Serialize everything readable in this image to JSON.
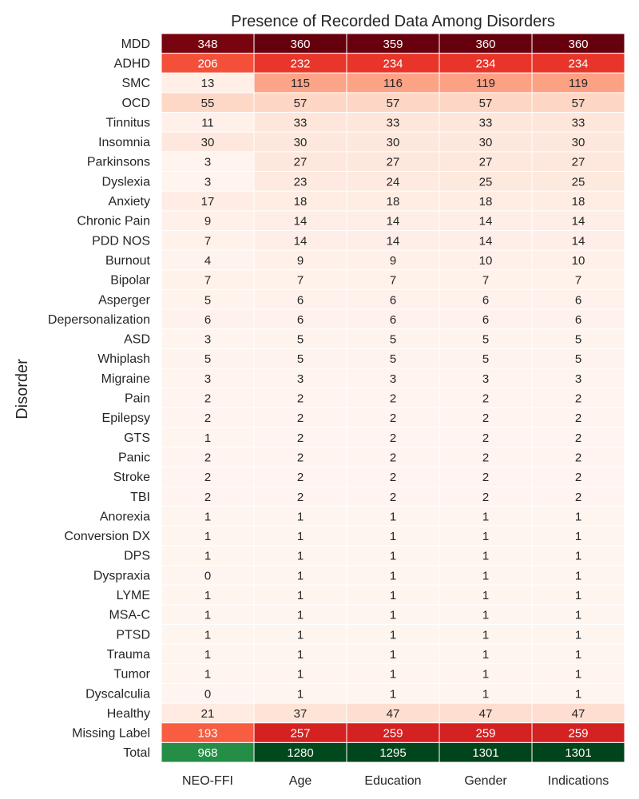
{
  "chart_data": {
    "type": "heatmap",
    "title": "Presence of Recorded Data Among Disorders",
    "xlabel": "",
    "ylabel": "Disorder",
    "columns": [
      "NEO-FFI",
      "Age",
      "Education",
      "Gender",
      "Indications"
    ],
    "rows": [
      {
        "label": "MDD",
        "values": [
          348,
          360,
          359,
          360,
          360
        ]
      },
      {
        "label": "ADHD",
        "values": [
          206,
          232,
          234,
          234,
          234
        ]
      },
      {
        "label": "SMC",
        "values": [
          13,
          115,
          116,
          119,
          119
        ]
      },
      {
        "label": "OCD",
        "values": [
          55,
          57,
          57,
          57,
          57
        ]
      },
      {
        "label": "Tinnitus",
        "values": [
          11,
          33,
          33,
          33,
          33
        ]
      },
      {
        "label": "Insomnia",
        "values": [
          30,
          30,
          30,
          30,
          30
        ]
      },
      {
        "label": "Parkinsons",
        "values": [
          3,
          27,
          27,
          27,
          27
        ]
      },
      {
        "label": "Dyslexia",
        "values": [
          3,
          23,
          24,
          25,
          25
        ]
      },
      {
        "label": "Anxiety",
        "values": [
          17,
          18,
          18,
          18,
          18
        ]
      },
      {
        "label": "Chronic Pain",
        "values": [
          9,
          14,
          14,
          14,
          14
        ]
      },
      {
        "label": "PDD NOS",
        "values": [
          7,
          14,
          14,
          14,
          14
        ]
      },
      {
        "label": "Burnout",
        "values": [
          4,
          9,
          9,
          10,
          10
        ]
      },
      {
        "label": "Bipolar",
        "values": [
          7,
          7,
          7,
          7,
          7
        ]
      },
      {
        "label": "Asperger",
        "values": [
          5,
          6,
          6,
          6,
          6
        ]
      },
      {
        "label": "Depersonalization",
        "values": [
          6,
          6,
          6,
          6,
          6
        ]
      },
      {
        "label": "ASD",
        "values": [
          3,
          5,
          5,
          5,
          5
        ]
      },
      {
        "label": "Whiplash",
        "values": [
          5,
          5,
          5,
          5,
          5
        ]
      },
      {
        "label": "Migraine",
        "values": [
          3,
          3,
          3,
          3,
          3
        ]
      },
      {
        "label": "Pain",
        "values": [
          2,
          2,
          2,
          2,
          2
        ]
      },
      {
        "label": "Epilepsy",
        "values": [
          2,
          2,
          2,
          2,
          2
        ]
      },
      {
        "label": "GTS",
        "values": [
          1,
          2,
          2,
          2,
          2
        ]
      },
      {
        "label": "Panic",
        "values": [
          2,
          2,
          2,
          2,
          2
        ]
      },
      {
        "label": "Stroke",
        "values": [
          2,
          2,
          2,
          2,
          2
        ]
      },
      {
        "label": "TBI",
        "values": [
          2,
          2,
          2,
          2,
          2
        ]
      },
      {
        "label": "Anorexia",
        "values": [
          1,
          1,
          1,
          1,
          1
        ]
      },
      {
        "label": "Conversion DX",
        "values": [
          1,
          1,
          1,
          1,
          1
        ]
      },
      {
        "label": "DPS",
        "values": [
          1,
          1,
          1,
          1,
          1
        ]
      },
      {
        "label": "Dyspraxia",
        "values": [
          0,
          1,
          1,
          1,
          1
        ]
      },
      {
        "label": "LYME",
        "values": [
          1,
          1,
          1,
          1,
          1
        ]
      },
      {
        "label": "MSA-C",
        "values": [
          1,
          1,
          1,
          1,
          1
        ]
      },
      {
        "label": "PTSD",
        "values": [
          1,
          1,
          1,
          1,
          1
        ]
      },
      {
        "label": "Trauma",
        "values": [
          1,
          1,
          1,
          1,
          1
        ]
      },
      {
        "label": "Tumor",
        "values": [
          1,
          1,
          1,
          1,
          1
        ]
      },
      {
        "label": "Dyscalculia",
        "values": [
          0,
          1,
          1,
          1,
          1
        ]
      },
      {
        "label": "Healthy",
        "values": [
          21,
          37,
          47,
          47,
          47
        ]
      },
      {
        "label": "Missing Label",
        "values": [
          193,
          257,
          259,
          259,
          259
        ]
      }
    ],
    "total_row": {
      "label": "Total",
      "values": [
        968,
        1280,
        1295,
        1301,
        1301
      ]
    },
    "colormap": "Reds",
    "color_range": [
      0,
      360
    ],
    "total_colormap": "Greens",
    "total_color_range": [
      0,
      1301
    ]
  }
}
